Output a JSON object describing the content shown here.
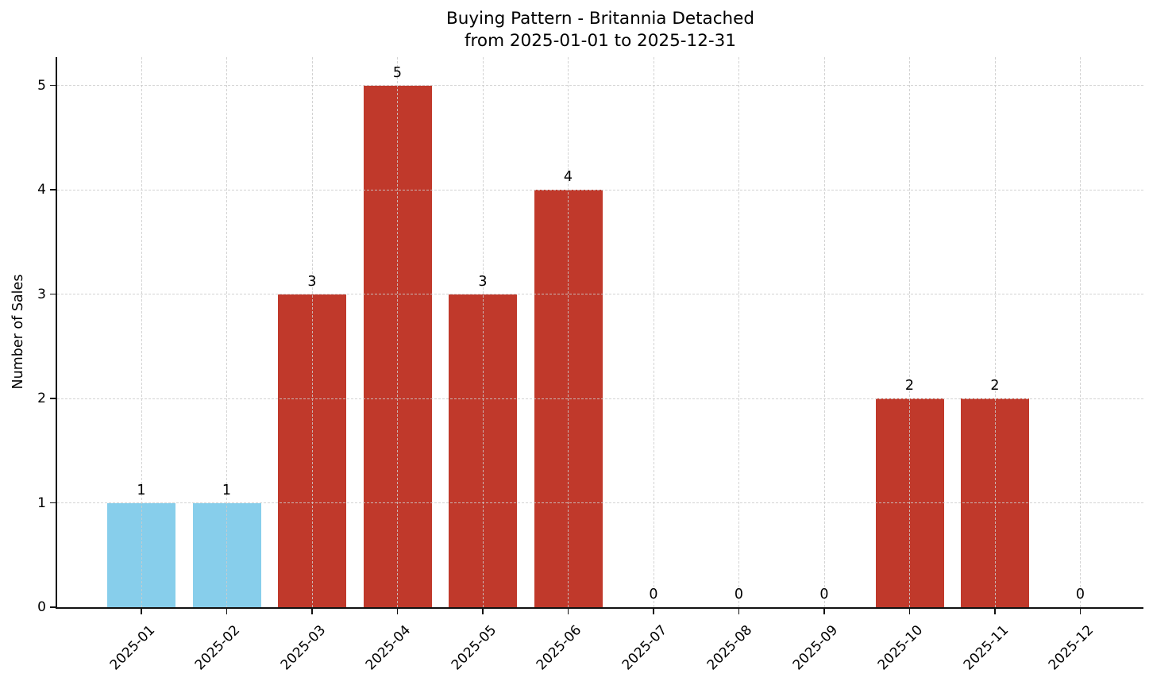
{
  "figure": {
    "title_line1": "Buying Pattern - Britannia Detached",
    "title_line2": "from 2025-01-01 to 2025-12-31",
    "ylabel": "Number of Sales"
  },
  "chart_data": {
    "type": "bar",
    "title": "Buying Pattern - Britannia Detached\nfrom 2025-01-01 to 2025-12-31",
    "xlabel": "",
    "ylabel": "Number of Sales",
    "categories": [
      "2025-01",
      "2025-02",
      "2025-03",
      "2025-04",
      "2025-05",
      "2025-06",
      "2025-07",
      "2025-08",
      "2025-09",
      "2025-10",
      "2025-11",
      "2025-12"
    ],
    "values": [
      1,
      1,
      3,
      5,
      3,
      4,
      0,
      0,
      0,
      2,
      2,
      0
    ],
    "value_labels": [
      "1",
      "1",
      "3",
      "5",
      "3",
      "4",
      "0",
      "0",
      "0",
      "2",
      "2",
      "0"
    ],
    "bar_colors": [
      "#87CEEB",
      "#87CEEB",
      "#C0392B",
      "#C0392B",
      "#C0392B",
      "#C0392B",
      "#87CEEB",
      "#87CEEB",
      "#87CEEB",
      "#C0392B",
      "#C0392B",
      "#87CEEB"
    ],
    "highlight_color": "#C0392B",
    "base_color": "#87CEEB",
    "yticks": [
      "0",
      "1",
      "2",
      "3",
      "4",
      "5"
    ],
    "ylim": [
      0,
      5.27
    ],
    "grid": "dashed",
    "grid_color": "#cbcbcb",
    "axis_color": "#111111",
    "text_color": "#000000",
    "legend": "none",
    "x_tick_rotation_deg": 45
  }
}
